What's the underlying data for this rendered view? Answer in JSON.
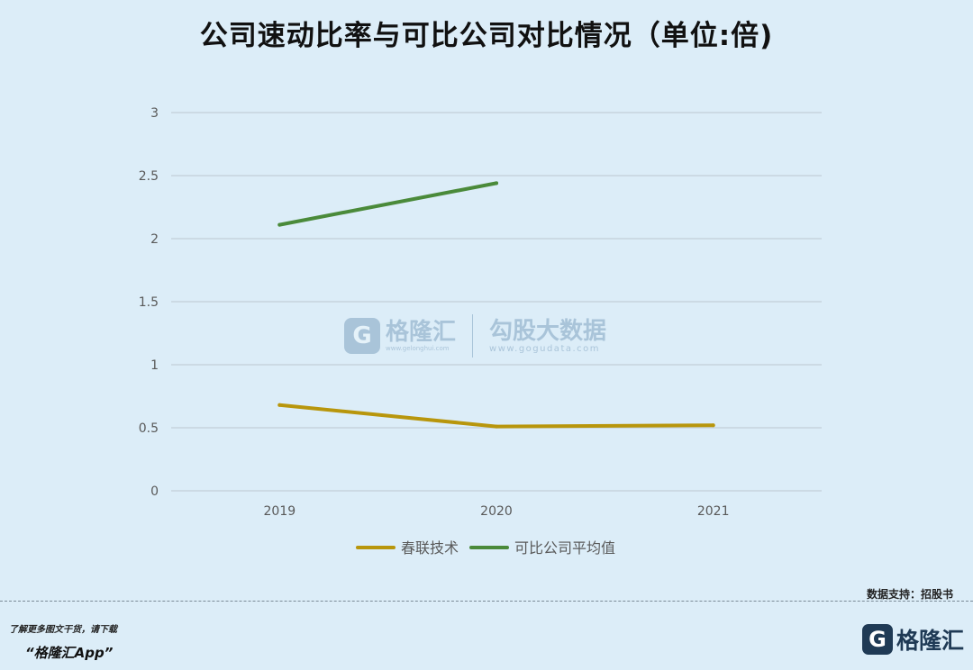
{
  "header": {
    "title": "公司速动比率与可比公司对比情况（单位:倍)"
  },
  "chart_data": {
    "type": "line",
    "title": "公司速动比率与可比公司对比情况（单位:倍)",
    "categories": [
      "2019",
      "2020",
      "2021"
    ],
    "ylim": [
      0,
      3
    ],
    "yticks": [
      0,
      0.5,
      1,
      1.5,
      2,
      2.5,
      3
    ],
    "ytick_labels": [
      "0",
      "0.5",
      "1",
      "1.5",
      "2",
      "2.5",
      "3"
    ],
    "grid": true,
    "legend_position": "bottom",
    "series": [
      {
        "name": "春联技术",
        "color": "#b8960c",
        "values": [
          0.68,
          0.51,
          0.52
        ]
      },
      {
        "name": "可比公司平均值",
        "color": "#4a8a3a",
        "values": [
          2.11,
          2.44,
          null
        ]
      }
    ]
  },
  "watermark": {
    "left_brand": "格隆汇",
    "left_url": "www.gelonghui.com",
    "right_brand": "勾股大数据",
    "right_url": "www.gogudata.com"
  },
  "footer": {
    "source": "数据支持：招股书",
    "promo_line1": "了解更多图文干货，请下载",
    "promo_line2": "“格隆汇App”",
    "brand_text": "格隆汇",
    "brand_mark": "G"
  }
}
